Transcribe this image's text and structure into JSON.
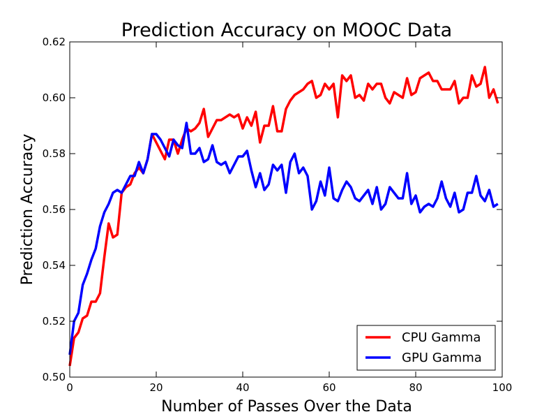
{
  "chart_data": {
    "type": "line",
    "title": "Prediction Accuracy on MOOC Data",
    "xlabel": "Number of Passes Over the Data",
    "ylabel": "Prediction Accuracy",
    "xlim": [
      0,
      100
    ],
    "ylim": [
      0.5,
      0.62
    ],
    "xticks": [
      "0",
      "20",
      "40",
      "60",
      "80",
      "100"
    ],
    "yticks": [
      "0.50",
      "0.52",
      "0.54",
      "0.56",
      "0.58",
      "0.60",
      "0.62"
    ],
    "grid": false,
    "legend_position": "bottom-right",
    "series": [
      {
        "name": "CPU Gamma",
        "color": "#ff0000",
        "x": [
          0,
          1,
          2,
          3,
          4,
          5,
          6,
          7,
          8,
          9,
          10,
          11,
          12,
          13,
          14,
          15,
          16,
          17,
          18,
          19,
          20,
          21,
          22,
          23,
          24,
          25,
          26,
          27,
          28,
          29,
          30,
          31,
          32,
          33,
          34,
          35,
          36,
          37,
          38,
          39,
          40,
          41,
          42,
          43,
          44,
          45,
          46,
          47,
          48,
          49,
          50,
          51,
          52,
          53,
          54,
          55,
          56,
          57,
          58,
          59,
          60,
          61,
          62,
          63,
          64,
          65,
          66,
          67,
          68,
          69,
          70,
          71,
          72,
          73,
          74,
          75,
          76,
          77,
          78,
          79,
          80,
          81,
          82,
          83,
          84,
          85,
          86,
          87,
          88,
          89,
          90,
          91,
          92,
          93,
          94,
          95,
          96,
          97,
          98,
          99
        ],
        "y": [
          0.504,
          0.514,
          0.516,
          0.521,
          0.522,
          0.527,
          0.527,
          0.53,
          0.543,
          0.555,
          0.55,
          0.551,
          0.566,
          0.568,
          0.569,
          0.573,
          0.575,
          0.573,
          0.578,
          0.587,
          0.584,
          0.581,
          0.578,
          0.585,
          0.585,
          0.58,
          0.585,
          0.589,
          0.588,
          0.589,
          0.591,
          0.596,
          0.586,
          0.589,
          0.592,
          0.592,
          0.593,
          0.594,
          0.593,
          0.594,
          0.589,
          0.593,
          0.59,
          0.595,
          0.584,
          0.59,
          0.59,
          0.597,
          0.588,
          0.588,
          0.596,
          0.599,
          0.601,
          0.602,
          0.603,
          0.605,
          0.606,
          0.6,
          0.601,
          0.605,
          0.603,
          0.605,
          0.593,
          0.608,
          0.606,
          0.608,
          0.6,
          0.601,
          0.599,
          0.605,
          0.603,
          0.605,
          0.605,
          0.6,
          0.598,
          0.602,
          0.601,
          0.6,
          0.607,
          0.601,
          0.602,
          0.607,
          0.608,
          0.609,
          0.606,
          0.606,
          0.603,
          0.603,
          0.603,
          0.606,
          0.598,
          0.6,
          0.6,
          0.608,
          0.604,
          0.605,
          0.611,
          0.6,
          0.603,
          0.598
        ]
      },
      {
        "name": "GPU Gamma",
        "color": "#0000ff",
        "x": [
          0,
          1,
          2,
          3,
          4,
          5,
          6,
          7,
          8,
          9,
          10,
          11,
          12,
          13,
          14,
          15,
          16,
          17,
          18,
          19,
          20,
          21,
          22,
          23,
          24,
          25,
          26,
          27,
          28,
          29,
          30,
          31,
          32,
          33,
          34,
          35,
          36,
          37,
          38,
          39,
          40,
          41,
          42,
          43,
          44,
          45,
          46,
          47,
          48,
          49,
          50,
          51,
          52,
          53,
          54,
          55,
          56,
          57,
          58,
          59,
          60,
          61,
          62,
          63,
          64,
          65,
          66,
          67,
          68,
          69,
          70,
          71,
          72,
          73,
          74,
          75,
          76,
          77,
          78,
          79,
          80,
          81,
          82,
          83,
          84,
          85,
          86,
          87,
          88,
          89,
          90,
          91,
          92,
          93,
          94,
          95,
          96,
          97,
          98,
          99
        ],
        "y": [
          0.508,
          0.52,
          0.523,
          0.533,
          0.537,
          0.542,
          0.546,
          0.554,
          0.559,
          0.562,
          0.566,
          0.567,
          0.566,
          0.569,
          0.572,
          0.572,
          0.577,
          0.573,
          0.578,
          0.587,
          0.587,
          0.585,
          0.582,
          0.579,
          0.585,
          0.583,
          0.582,
          0.591,
          0.58,
          0.58,
          0.582,
          0.577,
          0.578,
          0.583,
          0.577,
          0.576,
          0.577,
          0.573,
          0.576,
          0.579,
          0.579,
          0.581,
          0.574,
          0.568,
          0.573,
          0.567,
          0.569,
          0.576,
          0.574,
          0.576,
          0.566,
          0.577,
          0.58,
          0.573,
          0.575,
          0.572,
          0.56,
          0.563,
          0.57,
          0.565,
          0.575,
          0.564,
          0.563,
          0.567,
          0.57,
          0.568,
          0.564,
          0.563,
          0.565,
          0.567,
          0.562,
          0.568,
          0.56,
          0.562,
          0.568,
          0.566,
          0.564,
          0.564,
          0.573,
          0.562,
          0.565,
          0.559,
          0.561,
          0.562,
          0.561,
          0.564,
          0.57,
          0.564,
          0.561,
          0.566,
          0.559,
          0.56,
          0.566,
          0.566,
          0.572,
          0.565,
          0.563,
          0.567,
          0.561,
          0.562
        ]
      }
    ]
  }
}
